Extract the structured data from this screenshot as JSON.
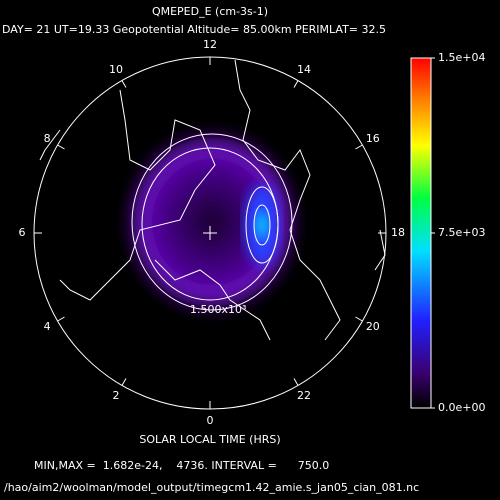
{
  "title": "QMEPED_E (cm-3s-1)",
  "subtitle": "DAY= 21 UT=19.33 Geopotential Altitude= 85.00km PERIMLAT= 32.5",
  "map": {
    "local_time_ticks": [
      0,
      2,
      4,
      6,
      8,
      10,
      12,
      14,
      16,
      18,
      20,
      22
    ],
    "contour_label": "1.500x10³",
    "axis_label": "SOLAR LOCAL TIME (HRS)"
  },
  "colorbar": {
    "lim": [
      0,
      15000
    ],
    "ticks": [
      {
        "value": 0,
        "label": "0.0e+00"
      },
      {
        "value": 7500,
        "label": "7.5e+03"
      },
      {
        "value": 15000,
        "label": "1.5e+04"
      }
    ]
  },
  "stats": "MIN,MAX =  1.682e-24,    4736. INTERVAL =      750.0",
  "file_path": "/hao/aim2/woolman/model_output/timegcm1.42_amie.s_jan05_cian_081.nc"
}
